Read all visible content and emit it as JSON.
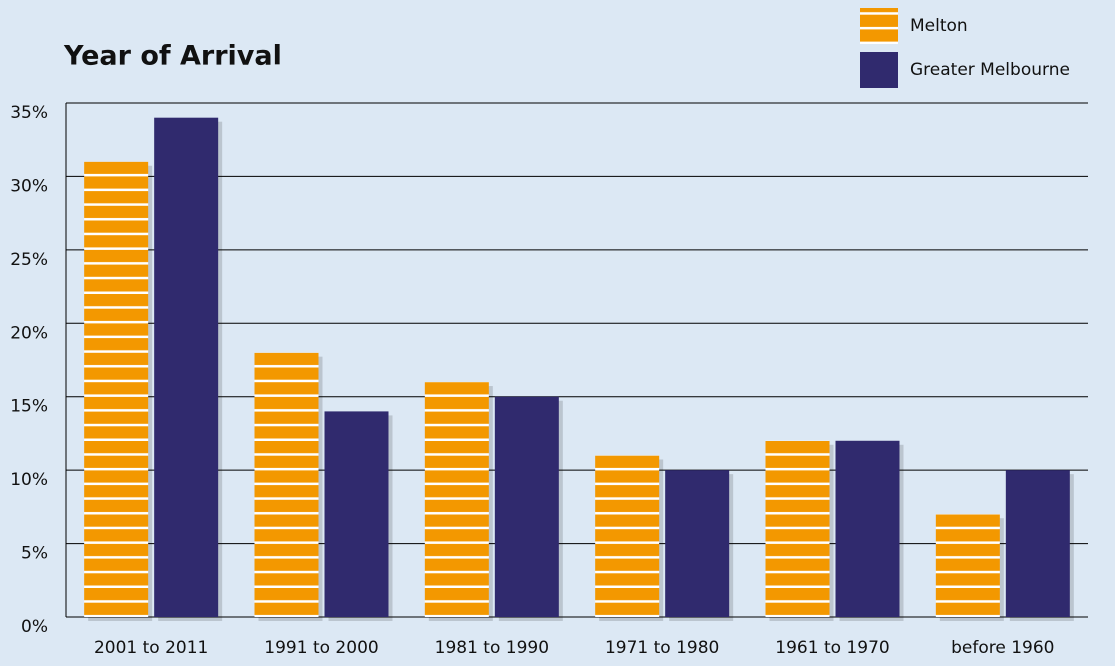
{
  "chart_data": {
    "type": "bar",
    "title": "Year of Arrival",
    "categories": [
      "2001 to 2011",
      "1991 to 2000",
      "1981 to 1990",
      "1971 to 1980",
      "1961 to 1970",
      "before 1960"
    ],
    "series": [
      {
        "name": "Melton",
        "color": "#f39800",
        "values": [
          31,
          18,
          16,
          11,
          12,
          7
        ]
      },
      {
        "name": "Greater Melbourne",
        "color": "#302a6e",
        "values": [
          34,
          14,
          15,
          10,
          12,
          10
        ]
      }
    ],
    "ylim": [
      0,
      35
    ],
    "yticks": [
      {
        "value": 0,
        "label": "0%"
      },
      {
        "value": 5,
        "label": "5%"
      },
      {
        "value": 10,
        "label": "10%"
      },
      {
        "value": 15,
        "label": "15%"
      },
      {
        "value": 20,
        "label": "20%"
      },
      {
        "value": 25,
        "label": "25%"
      },
      {
        "value": 30,
        "label": "30%"
      },
      {
        "value": 35,
        "label": "35%"
      }
    ],
    "grid": true,
    "legend": "top-right"
  }
}
